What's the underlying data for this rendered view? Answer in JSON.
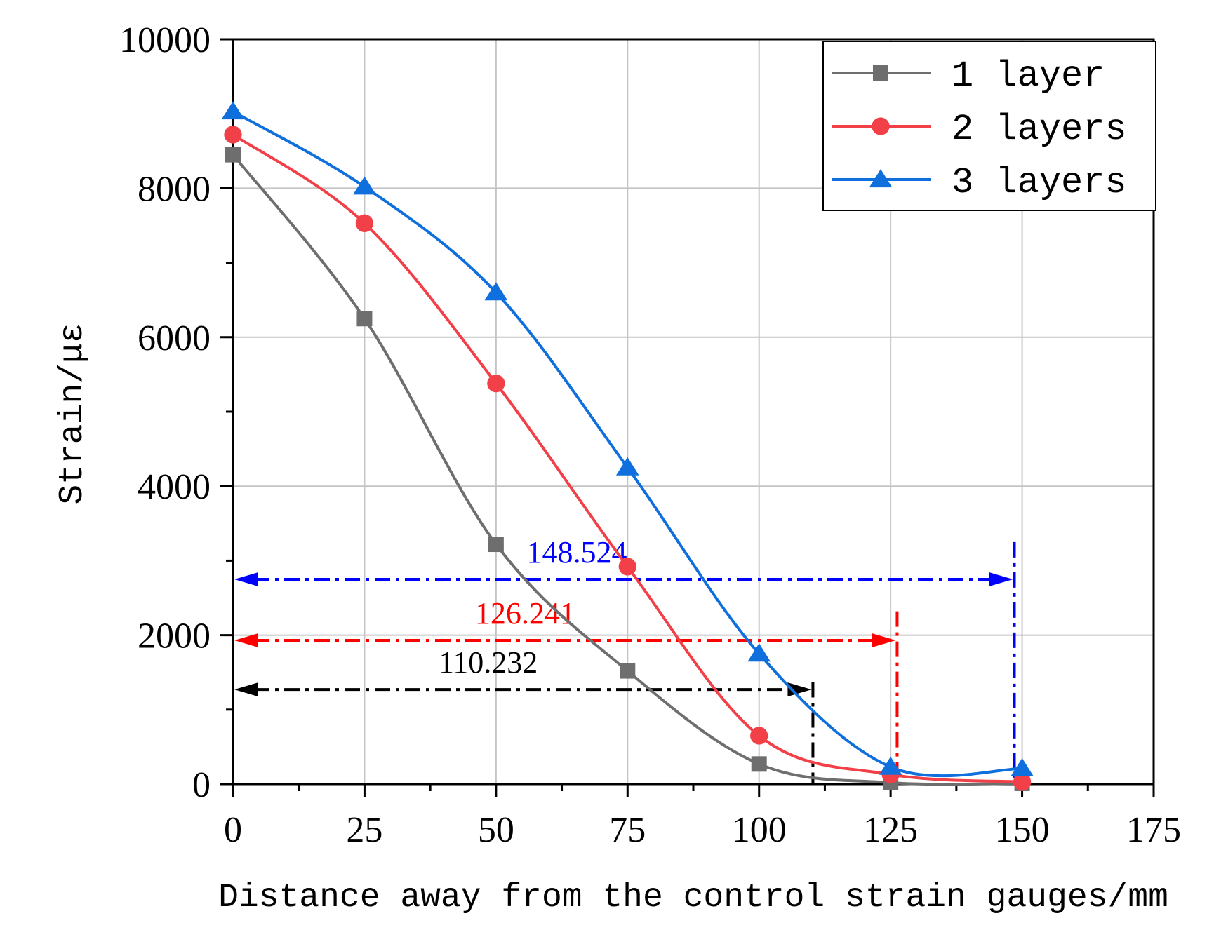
{
  "chart_data": {
    "type": "line",
    "title": "",
    "xlabel": "Distance away from the control strain gauges/mm",
    "ylabel": "Strain/με",
    "xlim": [
      0,
      175
    ],
    "ylim": [
      0,
      10000
    ],
    "xticks": [
      0,
      25,
      50,
      75,
      100,
      125,
      150,
      175
    ],
    "yticks": [
      0,
      2000,
      4000,
      6000,
      8000,
      10000
    ],
    "xtick_labels": [
      "0",
      "25",
      "50",
      "75",
      "100",
      "125",
      "150",
      "175"
    ],
    "ytick_labels": [
      "0",
      "2000",
      "4000",
      "6000",
      "8000",
      "10000"
    ],
    "grid": true,
    "legend_position": "top-right",
    "x": [
      0,
      25,
      50,
      75,
      100,
      125,
      150
    ],
    "series": [
      {
        "name": "1 layer",
        "color": "#6e6e6e",
        "marker": "square",
        "values": [
          8450,
          6250,
          3220,
          1520,
          270,
          20,
          10
        ]
      },
      {
        "name": "2 layers",
        "color": "#f24048",
        "marker": "circle",
        "values": [
          8720,
          7530,
          5380,
          2920,
          650,
          130,
          30
        ]
      },
      {
        "name": "3 layers",
        "color": "#0f6fdc",
        "marker": "triangle",
        "values": [
          9030,
          8020,
          6600,
          4250,
          1750,
          230,
          210
        ]
      }
    ],
    "annotations": [
      {
        "label": "148.524",
        "x": 148.524,
        "y": 2750,
        "line_top": 3250,
        "color": "#0000ff"
      },
      {
        "label": "126.241",
        "x": 126.241,
        "y": 1930,
        "line_top": 2320,
        "color": "#ff0000"
      },
      {
        "label": "110.232",
        "x": 110.232,
        "y": 1270,
        "line_top": 1370,
        "color": "#000000"
      }
    ]
  }
}
